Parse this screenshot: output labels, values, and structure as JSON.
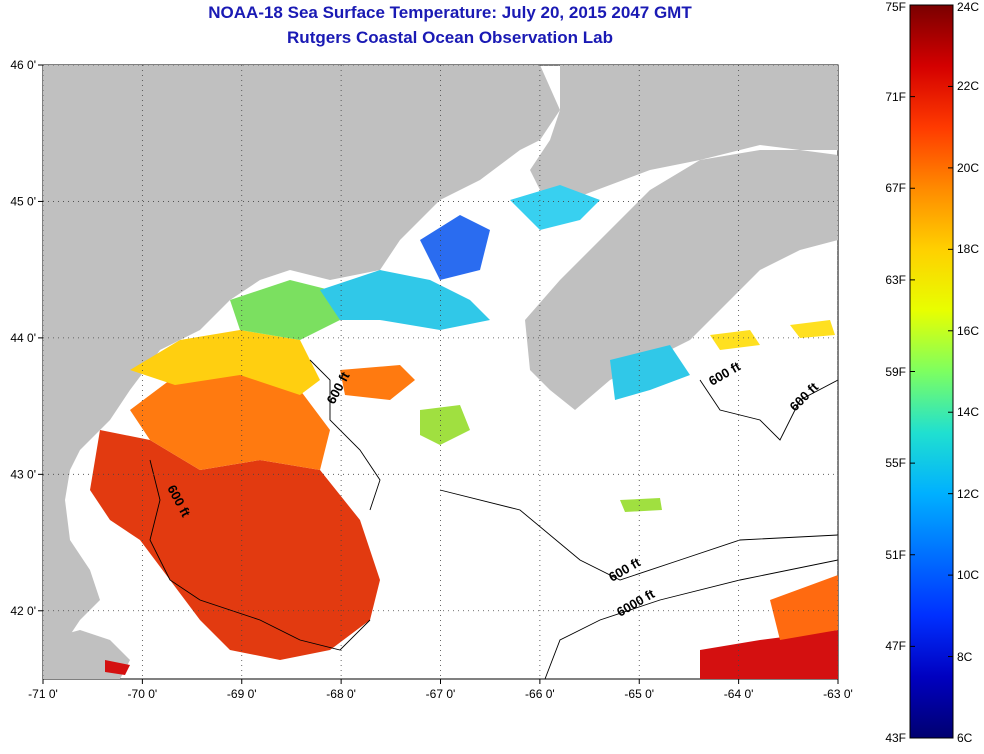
{
  "title": "NOAA-18 Sea Surface Temperature:  July 20, 2015 2047 GMT",
  "subtitle": "Rutgers Coastal Ocean Observation Lab",
  "map": {
    "lon_ticks": [
      "-71 0'",
      "-70 0'",
      "-69 0'",
      "-68 0'",
      "-67 0'",
      "-66 0'",
      "-65 0'",
      "-64 0'",
      "-63 0'"
    ],
    "lat_ticks": [
      "46 0'",
      "45 0'",
      "44 0'",
      "43 0'",
      "42 0'"
    ],
    "lon_range": [
      -71,
      -63
    ],
    "lat_range": [
      41.5,
      46
    ],
    "land_color": "#c0c0c0",
    "contours": [
      {
        "label": "600 ft"
      },
      {
        "label": "600 ft"
      },
      {
        "label": "600 ft"
      },
      {
        "label": "600 ft"
      },
      {
        "label": "600 ft"
      },
      {
        "label": "6000 ft"
      }
    ]
  },
  "colorbar": {
    "fahrenheit_labels": [
      "75F",
      "71F",
      "67F",
      "63F",
      "59F",
      "55F",
      "51F",
      "47F",
      "43F"
    ],
    "celsius_labels": [
      "24C",
      "22C",
      "20C",
      "18C",
      "16C",
      "14C",
      "12C",
      "10C",
      "8C",
      "6C"
    ],
    "colors": [
      "#7a0000",
      "#d40000",
      "#ff3a00",
      "#ff8a00",
      "#ffd000",
      "#e8ff00",
      "#7dff60",
      "#20e0d0",
      "#00b0ff",
      "#0070ff",
      "#0030ff",
      "#0000c0",
      "#000070"
    ]
  }
}
